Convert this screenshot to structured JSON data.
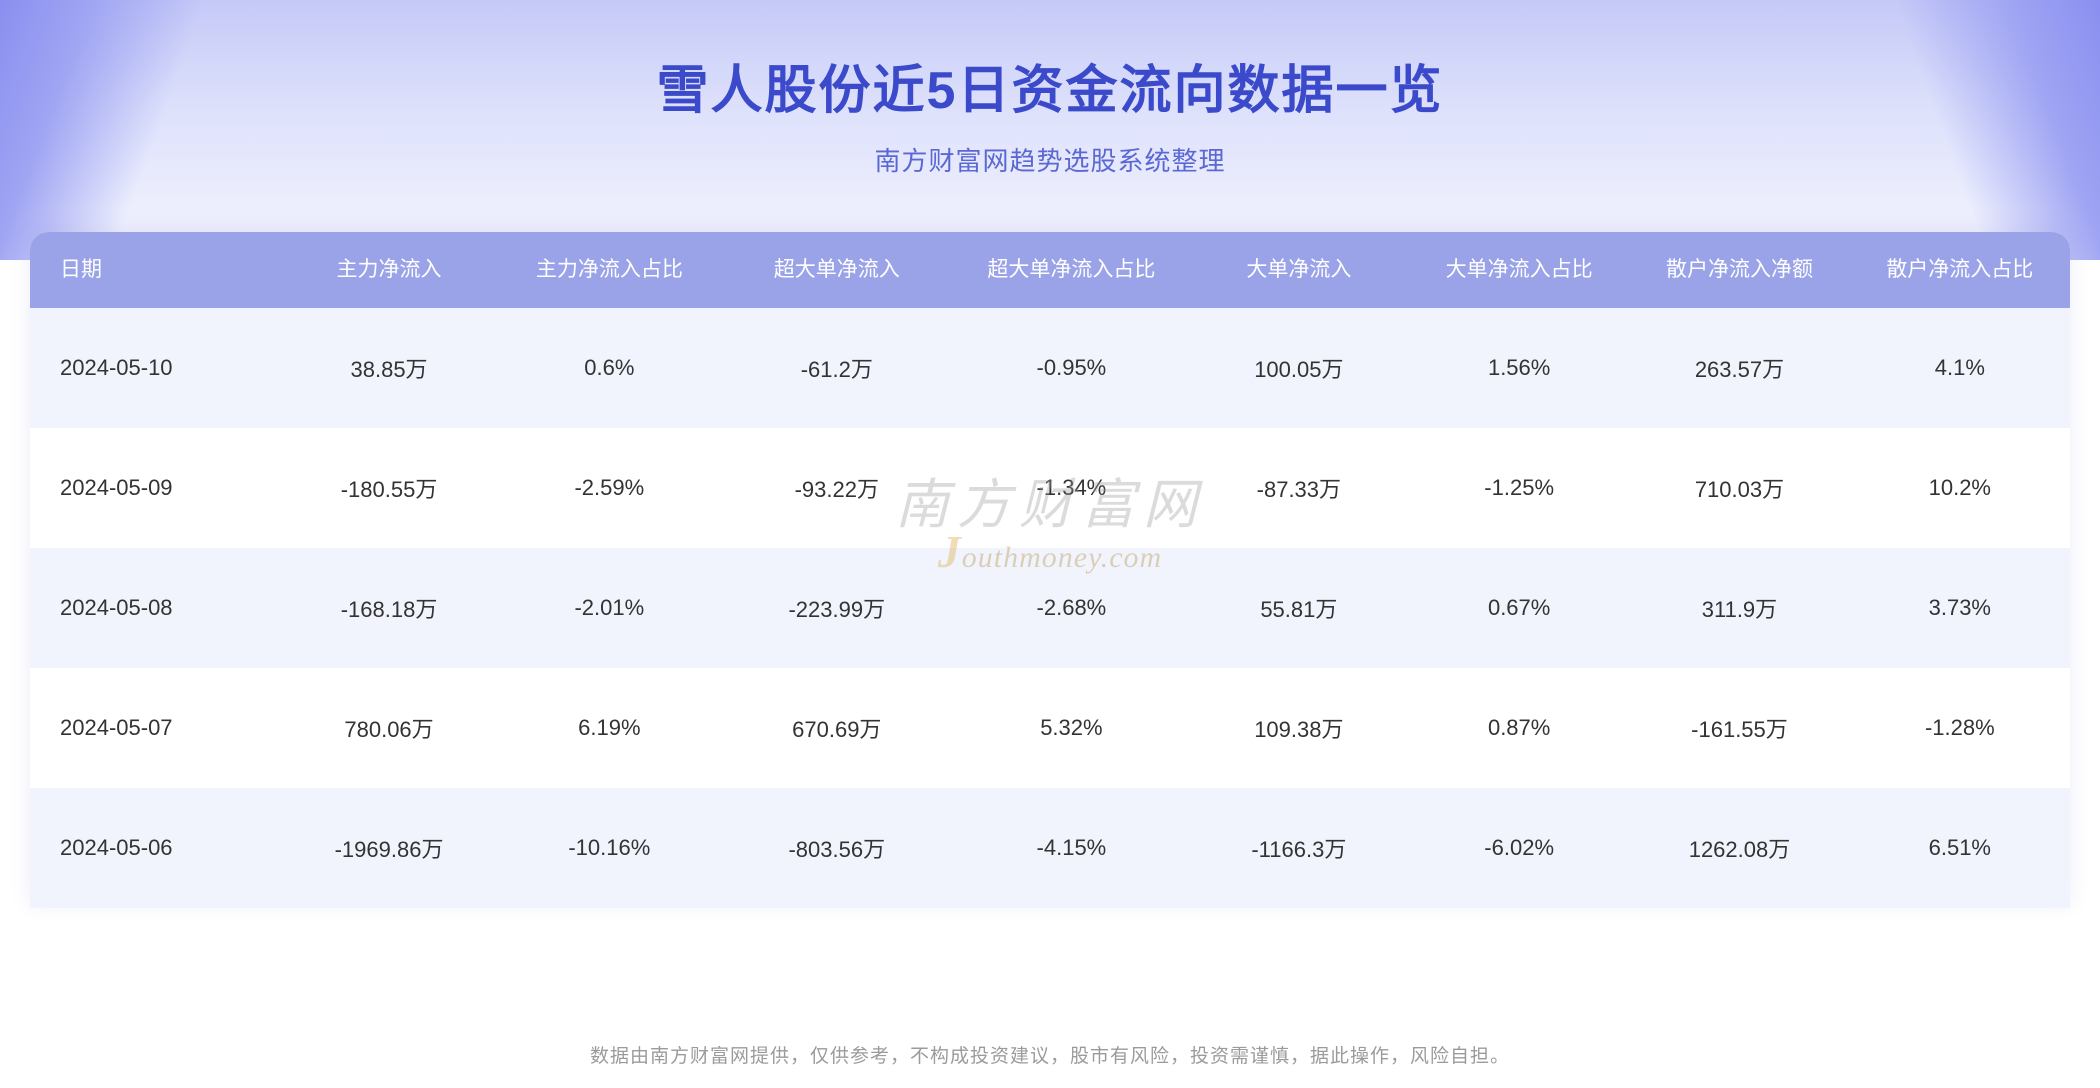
{
  "header": {
    "title": "雪人股份近5日资金流向数据一览",
    "subtitle": "南方财富网趋势选股系统整理",
    "title_color": "#3b4acb",
    "subtitle_color": "#5b68d4",
    "bg_gradient_top": "#c5c9f7",
    "bg_gradient_bottom": "#f5f6fe"
  },
  "table": {
    "header_bg": "#9aa3e8",
    "header_text_color": "#ffffff",
    "row_odd_bg": "#f2f4fd",
    "row_even_bg": "#ffffff",
    "cell_text_color": "#333333",
    "columns": [
      "日期",
      "主力净流入",
      "主力净流入占比",
      "超大单净流入",
      "超大单净流入占比",
      "大单净流入",
      "大单净流入占比",
      "散户净流入净额",
      "散户净流入占比"
    ],
    "rows": [
      [
        "2024-05-10",
        "38.85万",
        "0.6%",
        "-61.2万",
        "-0.95%",
        "100.05万",
        "1.56%",
        "263.57万",
        "4.1%"
      ],
      [
        "2024-05-09",
        "-180.55万",
        "-2.59%",
        "-93.22万",
        "-1.34%",
        "-87.33万",
        "-1.25%",
        "710.03万",
        "10.2%"
      ],
      [
        "2024-05-08",
        "-168.18万",
        "-2.01%",
        "-223.99万",
        "-2.68%",
        "55.81万",
        "0.67%",
        "311.9万",
        "3.73%"
      ],
      [
        "2024-05-07",
        "780.06万",
        "6.19%",
        "670.69万",
        "5.32%",
        "109.38万",
        "0.87%",
        "-161.55万",
        "-1.28%"
      ],
      [
        "2024-05-06",
        "-1969.86万",
        "-10.16%",
        "-803.56万",
        "-4.15%",
        "-1166.3万",
        "-6.02%",
        "1262.08万",
        "6.51%"
      ]
    ]
  },
  "watermark": {
    "cn": "南方财富网",
    "en_prefix": "J",
    "en_rest": "outhmoney.com"
  },
  "disclaimer": "数据由南方财富网提供，仅供参考，不构成投资建议，股市有风险，投资需谨慎，据此操作，风险自担。"
}
